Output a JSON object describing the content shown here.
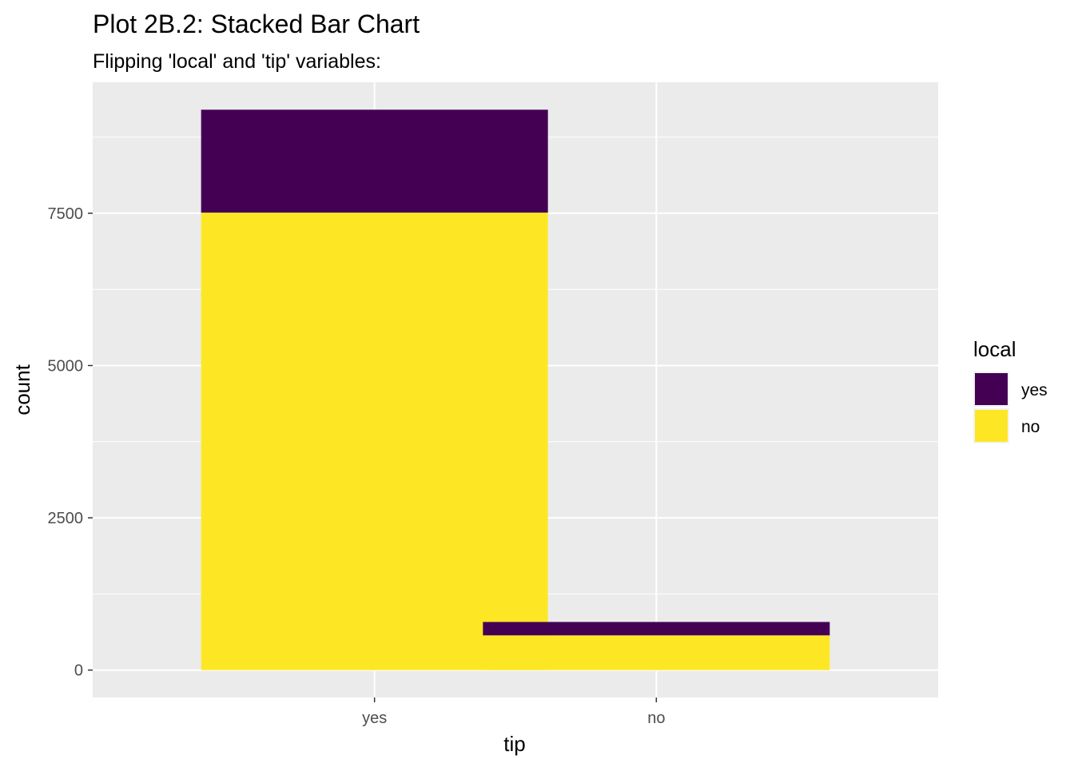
{
  "chart_data": {
    "type": "bar",
    "stacked": true,
    "title": "Plot 2B.2: Stacked Bar Chart",
    "subtitle": "Flipping 'local' and 'tip' variables:",
    "xlabel": "tip",
    "ylabel": "count",
    "categories": [
      "yes",
      "no"
    ],
    "series": [
      {
        "name": "no",
        "color": "#FDE725",
        "values": [
          7510,
          570
        ]
      },
      {
        "name": "yes",
        "color": "#440154",
        "values": [
          1690,
          220
        ]
      }
    ],
    "ylim": [
      -450,
      9650
    ],
    "yticks": [
      0,
      2500,
      5000,
      7500
    ],
    "ytick_labels": [
      "0",
      "2500",
      "5000",
      "7500"
    ],
    "grid": true,
    "panel_background": "#EBEBEB",
    "grid_color": "#FFFFFF",
    "legend": {
      "title": "local",
      "position": "right",
      "items": [
        {
          "label": "yes",
          "color": "#440154"
        },
        {
          "label": "no",
          "color": "#FDE725"
        }
      ]
    }
  }
}
